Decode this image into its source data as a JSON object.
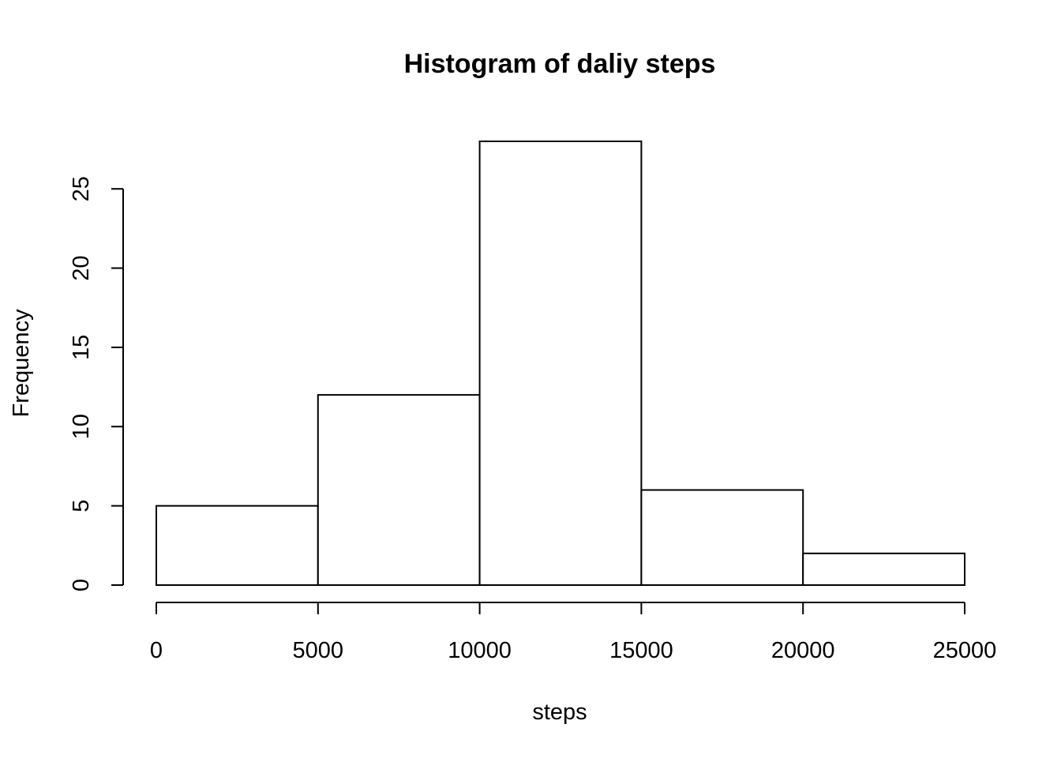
{
  "chart_data": {
    "type": "bar",
    "title": "Histogram of daliy steps",
    "xlabel": "steps",
    "ylabel": "Frequency",
    "bins": [
      {
        "from": 0,
        "to": 5000,
        "count": 5
      },
      {
        "from": 5000,
        "to": 10000,
        "count": 12
      },
      {
        "from": 10000,
        "to": 15000,
        "count": 28
      },
      {
        "from": 15000,
        "to": 20000,
        "count": 6
      },
      {
        "from": 20000,
        "to": 25000,
        "count": 2
      }
    ],
    "xlim": [
      0,
      25000
    ],
    "ylim": [
      0,
      28
    ],
    "x_ticks": [
      0,
      5000,
      10000,
      15000,
      20000,
      25000
    ],
    "y_ticks": [
      0,
      5,
      10,
      15,
      20,
      25
    ],
    "grid": false,
    "colors": {
      "bar_fill": "#ffffff",
      "bar_stroke": "#000000",
      "axis": "#000000"
    }
  }
}
